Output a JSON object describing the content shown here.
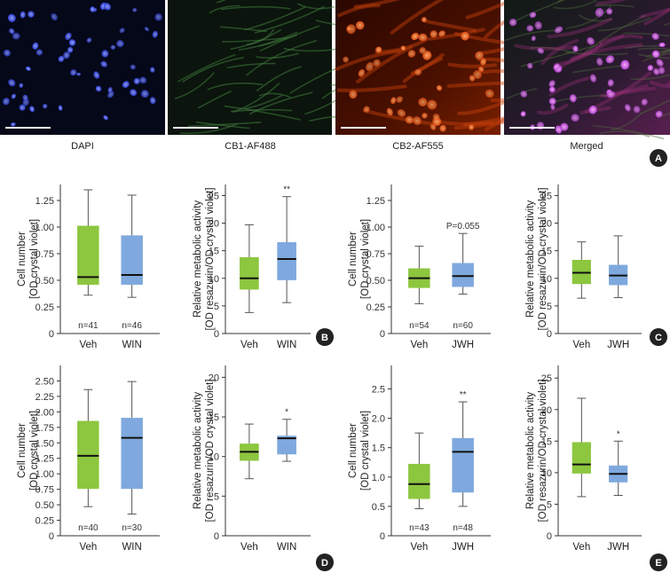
{
  "colors": {
    "veh_box": "#8DC63F",
    "treat_box": "#7FA9DE",
    "box_edge": "#6b8fc0",
    "axis": "#333333",
    "panel_badge": "#222222"
  },
  "micrographs": [
    {
      "label": "DAPI",
      "stain": "blue-nuclei"
    },
    {
      "label": "CB1-AF488",
      "stain": "dim-green-fibers"
    },
    {
      "label": "CB2-AF555",
      "stain": "orange-cells"
    },
    {
      "label": "Merged",
      "stain": "merged-magenta"
    }
  ],
  "panel_badges": [
    "A",
    "B",
    "C",
    "D",
    "E"
  ],
  "chart_data": [
    {
      "type": "box",
      "panel": "B",
      "ylabel": [
        "Cell number",
        "[OD crystal violet]"
      ],
      "yticks": [
        "0",
        "0.25",
        "0.50",
        "0.75",
        "1.00",
        "1.25"
      ],
      "ylim": [
        0,
        1.4
      ],
      "yticks_values": [
        0,
        0.25,
        0.5,
        0.75,
        1.0,
        1.25
      ],
      "categories": [
        "Veh",
        "WIN"
      ],
      "boxes": [
        {
          "min": 0.36,
          "q1": 0.46,
          "median": 0.53,
          "q3": 1.01,
          "max": 1.35
        },
        {
          "min": 0.34,
          "q1": 0.46,
          "median": 0.55,
          "q3": 0.92,
          "max": 1.3
        }
      ],
      "n_labels": [
        "n=41",
        "n=46"
      ],
      "annotations": [
        "",
        ""
      ]
    },
    {
      "type": "box",
      "panel": "B",
      "ylabel": [
        "Relative metabolic activity",
        "[OD resazurin/OD crystal violet]"
      ],
      "yticks": [
        "0",
        "5",
        "10",
        "15",
        "20",
        "25"
      ],
      "ylim": [
        0,
        27
      ],
      "yticks_values": [
        0,
        5,
        10,
        15,
        20,
        25
      ],
      "categories": [
        "Veh",
        "WIN"
      ],
      "boxes": [
        {
          "min": 3.8,
          "q1": 8.0,
          "median": 10.0,
          "q3": 13.8,
          "max": 19.7
        },
        {
          "min": 5.6,
          "q1": 9.7,
          "median": 13.5,
          "q3": 16.5,
          "max": 24.8
        }
      ],
      "n_labels": [
        "",
        ""
      ],
      "annotations": [
        "",
        "**"
      ]
    },
    {
      "type": "box",
      "panel": "C",
      "ylabel": [
        "Cell number",
        "[OD crystal violet]"
      ],
      "yticks": [
        "0",
        "0.25",
        "0.50",
        "0.75",
        "1.00",
        "1.25"
      ],
      "ylim": [
        0,
        1.4
      ],
      "yticks_values": [
        0,
        0.25,
        0.5,
        0.75,
        1.0,
        1.25
      ],
      "categories": [
        "Veh",
        "JWH"
      ],
      "boxes": [
        {
          "min": 0.28,
          "q1": 0.43,
          "median": 0.52,
          "q3": 0.61,
          "max": 0.82
        },
        {
          "min": 0.37,
          "q1": 0.44,
          "median": 0.54,
          "q3": 0.66,
          "max": 0.94
        }
      ],
      "n_labels": [
        "n=54",
        "n=60"
      ],
      "annotations": [
        "",
        "P=0.055"
      ]
    },
    {
      "type": "box",
      "panel": "C",
      "ylabel": [
        "Relative metabolic activity",
        "[OD resazurin/OD crystal violet]"
      ],
      "yticks": [
        "0",
        "5",
        "10",
        "15",
        "20",
        "25"
      ],
      "ylim": [
        0,
        27
      ],
      "yticks_values": [
        0,
        5,
        10,
        15,
        20,
        25
      ],
      "categories": [
        "Veh",
        "JWH"
      ],
      "boxes": [
        {
          "min": 6.4,
          "q1": 9.0,
          "median": 11.0,
          "q3": 13.3,
          "max": 16.6
        },
        {
          "min": 6.5,
          "q1": 8.8,
          "median": 10.5,
          "q3": 12.4,
          "max": 17.7
        }
      ],
      "n_labels": [
        "",
        ""
      ],
      "annotations": [
        "",
        ""
      ]
    },
    {
      "type": "box",
      "panel": "D",
      "ylabel": [
        "Cell number",
        "[OD crystal violet]"
      ],
      "yticks": [
        "0",
        "0.25",
        "0.50",
        "0.75",
        "1.00",
        "1.25",
        "1.50",
        "1.75",
        "2.00",
        "2.25",
        "2.50"
      ],
      "ylim": [
        0,
        2.75
      ],
      "yticks_values": [
        0,
        0.25,
        0.5,
        0.75,
        1.0,
        1.25,
        1.5,
        1.75,
        2.0,
        2.25,
        2.5
      ],
      "categories": [
        "Veh",
        "WIN"
      ],
      "boxes": [
        {
          "min": 0.47,
          "q1": 0.76,
          "median": 1.29,
          "q3": 1.85,
          "max": 2.36
        },
        {
          "min": 0.35,
          "q1": 0.76,
          "median": 1.58,
          "q3": 1.9,
          "max": 2.49
        }
      ],
      "n_labels": [
        "n=40",
        "n=30"
      ],
      "annotations": [
        "",
        ""
      ]
    },
    {
      "type": "box",
      "panel": "D",
      "ylabel": [
        "Relative metabolic activity",
        "[OD resazurin/OD crystal violet]"
      ],
      "yticks": [
        "0",
        "5",
        "10",
        "15",
        "20"
      ],
      "ylim": [
        0,
        21.5
      ],
      "yticks_values": [
        0,
        5,
        10,
        15,
        20
      ],
      "categories": [
        "Veh",
        "WIN"
      ],
      "boxes": [
        {
          "min": 7.2,
          "q1": 9.5,
          "median": 10.6,
          "q3": 11.6,
          "max": 14.1
        },
        {
          "min": 9.4,
          "q1": 10.3,
          "median": 12.3,
          "q3": 12.6,
          "max": 14.7
        }
      ],
      "n_labels": [
        "",
        ""
      ],
      "annotations": [
        "",
        "*"
      ]
    },
    {
      "type": "box",
      "panel": "E",
      "ylabel": [
        "Cell number",
        "[OD crystal violet]"
      ],
      "yticks": [
        "0",
        "0.5",
        "1.0",
        "1.5",
        "2.0",
        "2.5"
      ],
      "ylim": [
        0,
        2.9
      ],
      "yticks_values": [
        0,
        0.5,
        1.0,
        1.5,
        2.0,
        2.5
      ],
      "categories": [
        "Veh",
        "JWH"
      ],
      "boxes": [
        {
          "min": 0.46,
          "q1": 0.63,
          "median": 0.88,
          "q3": 1.22,
          "max": 1.75
        },
        {
          "min": 0.5,
          "q1": 0.74,
          "median": 1.43,
          "q3": 1.66,
          "max": 2.28
        }
      ],
      "n_labels": [
        "n=43",
        "n=48"
      ],
      "annotations": [
        "",
        "**"
      ]
    },
    {
      "type": "box",
      "panel": "E",
      "ylabel": [
        "Relative metabolic activity",
        "[OD resazurin/OD crystal violet]"
      ],
      "yticks": [
        "0",
        "5",
        "10",
        "15",
        "20",
        "25"
      ],
      "ylim": [
        0,
        27
      ],
      "yticks_values": [
        0,
        5,
        10,
        15,
        20,
        25
      ],
      "categories": [
        "Veh",
        "JWH"
      ],
      "boxes": [
        {
          "min": 6.2,
          "q1": 9.9,
          "median": 11.3,
          "q3": 14.8,
          "max": 21.8
        },
        {
          "min": 6.4,
          "q1": 8.5,
          "median": 9.8,
          "q3": 11.1,
          "max": 15.0
        }
      ],
      "n_labels": [
        "",
        ""
      ],
      "annotations": [
        "",
        "*"
      ]
    }
  ]
}
